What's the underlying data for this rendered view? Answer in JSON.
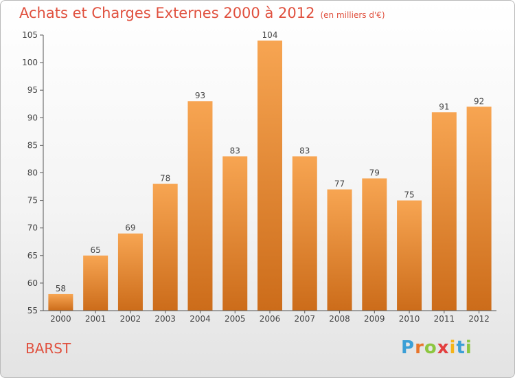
{
  "chart_data": {
    "type": "bar",
    "title": "Achats et Charges Externes 2000 à 2012",
    "subtitle": "(en milliers d'€)",
    "categories": [
      "2000",
      "2001",
      "2002",
      "2003",
      "2004",
      "2005",
      "2006",
      "2007",
      "2008",
      "2009",
      "2010",
      "2011",
      "2012"
    ],
    "values": [
      58,
      65,
      69,
      78,
      93,
      83,
      104,
      83,
      77,
      79,
      75,
      91,
      92
    ],
    "ylim": [
      55,
      105
    ],
    "yticks": [
      55,
      60,
      65,
      70,
      75,
      80,
      85,
      90,
      95,
      100,
      105
    ],
    "xlabel": "",
    "ylabel": "",
    "grid": false,
    "bar_color_top": "#f7a552",
    "bar_color_bottom": "#cc6c1a"
  },
  "commune": "BARST",
  "logo": {
    "letters": [
      "P",
      "r",
      "o",
      "x",
      "i",
      "t",
      "i"
    ],
    "colors": [
      "#3b9fd6",
      "#e8742a",
      "#8cc63f",
      "#e33f3f",
      "#f4b41a",
      "#3b9fd6",
      "#8cc63f"
    ]
  },
  "colors": {
    "title": "#e0503e",
    "axis": "#444444"
  }
}
